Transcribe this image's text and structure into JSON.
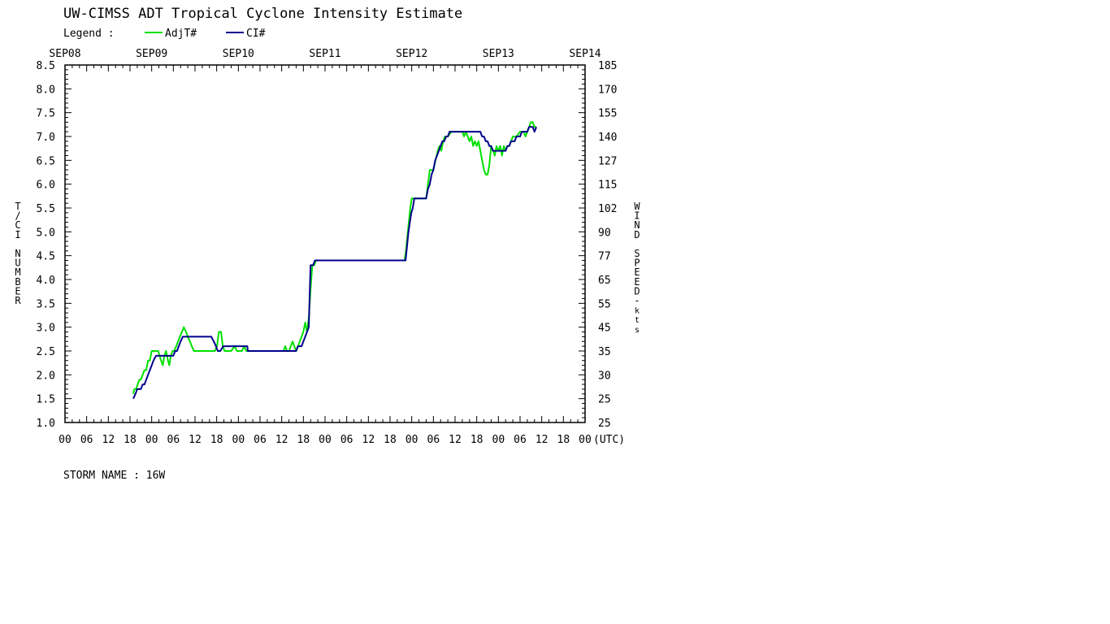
{
  "chart_data": {
    "type": "line",
    "title": "UW-CIMSS ADT Tropical Cyclone Intensity Estimate",
    "legend_label": "Legend :",
    "legend_placement": "top-left",
    "grid": false,
    "ylabel": "T/CI NUMBER",
    "y2label": "WIND SPEED-kts",
    "xlabel_unit": "(UTC)",
    "footer_label": "STORM NAME : 16W",
    "ylim": [
      1.0,
      8.5
    ],
    "yticks": [
      "1.0",
      "1.5",
      "2.0",
      "2.5",
      "3.0",
      "3.5",
      "4.0",
      "4.5",
      "5.0",
      "5.5",
      "6.0",
      "6.5",
      "7.0",
      "7.5",
      "8.0",
      "8.5"
    ],
    "y2ticks": [
      "25",
      "25",
      "30",
      "35",
      "45",
      "55",
      "65",
      "77",
      "90",
      "102",
      "115",
      "127",
      "140",
      "155",
      "170",
      "185"
    ],
    "x_unit": "hours since SEP08 00UTC",
    "xlim": [
      0,
      144
    ],
    "date_labels": [
      "SEP08",
      "SEP09",
      "SEP10",
      "SEP11",
      "SEP12",
      "SEP13",
      "SEP14"
    ],
    "hour_labels": [
      "00",
      "06",
      "12",
      "18",
      "00",
      "06",
      "12",
      "18",
      "00",
      "06",
      "12",
      "18",
      "00",
      "06",
      "12",
      "18",
      "00",
      "06",
      "12",
      "18",
      "00",
      "06",
      "12",
      "18",
      "00"
    ],
    "series": [
      {
        "name": "AdjT#",
        "color": "#00e000",
        "points": [
          [
            18.9,
            1.6
          ],
          [
            19.2,
            1.7
          ],
          [
            19.7,
            1.7
          ],
          [
            20.1,
            1.8
          ],
          [
            20.6,
            1.9
          ],
          [
            21.0,
            1.9
          ],
          [
            21.5,
            2.0
          ],
          [
            22.0,
            2.1
          ],
          [
            22.5,
            2.1
          ],
          [
            23.0,
            2.3
          ],
          [
            23.5,
            2.3
          ],
          [
            24.0,
            2.5
          ],
          [
            24.5,
            2.5
          ],
          [
            25.2,
            2.5
          ],
          [
            25.8,
            2.5
          ],
          [
            26.2,
            2.4
          ],
          [
            26.6,
            2.3
          ],
          [
            27.1,
            2.2
          ],
          [
            27.5,
            2.4
          ],
          [
            28.0,
            2.5
          ],
          [
            28.5,
            2.3
          ],
          [
            28.9,
            2.2
          ],
          [
            29.3,
            2.4
          ],
          [
            29.8,
            2.5
          ],
          [
            30.2,
            2.5
          ],
          [
            30.8,
            2.6
          ],
          [
            31.3,
            2.7
          ],
          [
            31.8,
            2.8
          ],
          [
            32.4,
            2.9
          ],
          [
            32.9,
            3.0
          ],
          [
            33.5,
            2.9
          ],
          [
            34.0,
            2.8
          ],
          [
            34.6,
            2.7
          ],
          [
            35.1,
            2.6
          ],
          [
            35.7,
            2.5
          ],
          [
            36.5,
            2.5
          ],
          [
            38.0,
            2.5
          ],
          [
            40.0,
            2.5
          ],
          [
            41.5,
            2.5
          ],
          [
            42.1,
            2.6
          ],
          [
            42.6,
            2.9
          ],
          [
            43.2,
            2.9
          ],
          [
            43.7,
            2.6
          ],
          [
            44.2,
            2.5
          ],
          [
            45.0,
            2.5
          ],
          [
            46.0,
            2.5
          ],
          [
            47.0,
            2.6
          ],
          [
            47.6,
            2.5
          ],
          [
            48.4,
            2.5
          ],
          [
            49.0,
            2.5
          ],
          [
            49.6,
            2.6
          ],
          [
            50.2,
            2.5
          ],
          [
            51.0,
            2.5
          ],
          [
            53.0,
            2.5
          ],
          [
            55.0,
            2.5
          ],
          [
            58.0,
            2.5
          ],
          [
            60.5,
            2.5
          ],
          [
            61.0,
            2.6
          ],
          [
            61.5,
            2.5
          ],
          [
            62.0,
            2.5
          ],
          [
            62.5,
            2.6
          ],
          [
            63.0,
            2.7
          ],
          [
            63.5,
            2.6
          ],
          [
            64.0,
            2.5
          ],
          [
            64.5,
            2.6
          ],
          [
            65.0,
            2.7
          ],
          [
            65.5,
            2.8
          ],
          [
            66.0,
            2.9
          ],
          [
            66.5,
            3.1
          ],
          [
            67.0,
            2.9
          ],
          [
            67.5,
            3.2
          ],
          [
            68.0,
            3.8
          ],
          [
            68.5,
            4.3
          ],
          [
            69.0,
            4.3
          ],
          [
            69.5,
            4.4
          ],
          [
            72.0,
            4.4
          ],
          [
            76.0,
            4.4
          ],
          [
            80.0,
            4.4
          ],
          [
            84.0,
            4.4
          ],
          [
            88.0,
            4.4
          ],
          [
            94.0,
            4.4
          ],
          [
            94.4,
            4.6
          ],
          [
            94.8,
            4.9
          ],
          [
            95.2,
            5.2
          ],
          [
            95.6,
            5.5
          ],
          [
            96.0,
            5.7
          ],
          [
            97.0,
            5.7
          ],
          [
            98.0,
            5.7
          ],
          [
            99.0,
            5.7
          ],
          [
            100.0,
            5.7
          ],
          [
            100.5,
            6.0
          ],
          [
            101.0,
            6.3
          ],
          [
            101.5,
            6.3
          ],
          [
            102.0,
            6.3
          ],
          [
            102.6,
            6.5
          ],
          [
            103.2,
            6.7
          ],
          [
            103.7,
            6.8
          ],
          [
            104.2,
            6.7
          ],
          [
            104.7,
            6.9
          ],
          [
            105.2,
            7.0
          ],
          [
            106.0,
            7.0
          ],
          [
            107.0,
            7.1
          ],
          [
            108.0,
            7.1
          ],
          [
            109.0,
            7.1
          ],
          [
            110.0,
            7.1
          ],
          [
            110.5,
            7.0
          ],
          [
            111.0,
            7.1
          ],
          [
            111.5,
            7.0
          ],
          [
            112.0,
            6.9
          ],
          [
            112.5,
            7.0
          ],
          [
            113.0,
            6.8
          ],
          [
            113.5,
            6.9
          ],
          [
            114.0,
            6.8
          ],
          [
            114.5,
            6.9
          ],
          [
            115.0,
            6.7
          ],
          [
            115.5,
            6.5
          ],
          [
            116.0,
            6.3
          ],
          [
            116.5,
            6.2
          ],
          [
            117.0,
            6.2
          ],
          [
            117.5,
            6.4
          ],
          [
            118.0,
            6.8
          ],
          [
            118.5,
            6.7
          ],
          [
            119.0,
            6.6
          ],
          [
            119.5,
            6.8
          ],
          [
            120.0,
            6.7
          ],
          [
            120.5,
            6.8
          ],
          [
            121.0,
            6.6
          ],
          [
            121.5,
            6.8
          ],
          [
            122.0,
            6.7
          ],
          [
            122.5,
            6.8
          ],
          [
            123.0,
            6.8
          ],
          [
            123.5,
            6.9
          ],
          [
            124.0,
            7.0
          ],
          [
            125.0,
            7.0
          ],
          [
            126.0,
            7.1
          ],
          [
            127.0,
            7.1
          ],
          [
            127.5,
            7.0
          ],
          [
            128.0,
            7.1
          ],
          [
            128.5,
            7.2
          ],
          [
            129.0,
            7.3
          ],
          [
            129.5,
            7.3
          ],
          [
            130.0,
            7.2
          ],
          [
            130.5,
            7.2
          ]
        ]
      },
      {
        "name": "CI#",
        "color": "#00008b",
        "points": [
          [
            18.9,
            1.5
          ],
          [
            19.5,
            1.6
          ],
          [
            20.0,
            1.7
          ],
          [
            21.0,
            1.7
          ],
          [
            21.5,
            1.8
          ],
          [
            22.0,
            1.8
          ],
          [
            22.5,
            1.9
          ],
          [
            23.0,
            2.0
          ],
          [
            23.5,
            2.1
          ],
          [
            24.0,
            2.2
          ],
          [
            24.5,
            2.3
          ],
          [
            25.2,
            2.4
          ],
          [
            26.0,
            2.4
          ],
          [
            27.0,
            2.4
          ],
          [
            28.0,
            2.4
          ],
          [
            29.0,
            2.4
          ],
          [
            30.0,
            2.4
          ],
          [
            30.5,
            2.5
          ],
          [
            31.0,
            2.5
          ],
          [
            31.5,
            2.6
          ],
          [
            32.0,
            2.7
          ],
          [
            32.6,
            2.8
          ],
          [
            33.5,
            2.8
          ],
          [
            35.0,
            2.8
          ],
          [
            37.0,
            2.8
          ],
          [
            39.0,
            2.8
          ],
          [
            40.5,
            2.8
          ],
          [
            41.2,
            2.7
          ],
          [
            41.8,
            2.6
          ],
          [
            42.3,
            2.5
          ],
          [
            43.0,
            2.5
          ],
          [
            43.8,
            2.6
          ],
          [
            45.0,
            2.6
          ],
          [
            47.0,
            2.6
          ],
          [
            49.0,
            2.6
          ],
          [
            50.5,
            2.6
          ],
          [
            50.6,
            2.5
          ],
          [
            53.0,
            2.5
          ],
          [
            56.0,
            2.5
          ],
          [
            59.0,
            2.5
          ],
          [
            62.0,
            2.5
          ],
          [
            64.0,
            2.5
          ],
          [
            64.5,
            2.6
          ],
          [
            65.5,
            2.6
          ],
          [
            66.0,
            2.7
          ],
          [
            66.5,
            2.8
          ],
          [
            67.0,
            2.9
          ],
          [
            67.5,
            3.0
          ],
          [
            67.8,
            3.8
          ],
          [
            68.0,
            4.3
          ],
          [
            68.7,
            4.3
          ],
          [
            69.2,
            4.4
          ],
          [
            72.0,
            4.4
          ],
          [
            76.0,
            4.4
          ],
          [
            80.0,
            4.4
          ],
          [
            84.0,
            4.4
          ],
          [
            88.0,
            4.4
          ],
          [
            93.5,
            4.4
          ],
          [
            94.3,
            4.4
          ],
          [
            94.7,
            4.7
          ],
          [
            95.1,
            5.0
          ],
          [
            95.5,
            5.2
          ],
          [
            95.9,
            5.4
          ],
          [
            96.3,
            5.5
          ],
          [
            96.7,
            5.7
          ],
          [
            97.5,
            5.7
          ],
          [
            98.5,
            5.7
          ],
          [
            99.5,
            5.7
          ],
          [
            100.0,
            5.7
          ],
          [
            100.5,
            5.9
          ],
          [
            101.0,
            6.0
          ],
          [
            101.5,
            6.2
          ],
          [
            102.0,
            6.3
          ],
          [
            102.5,
            6.5
          ],
          [
            103.0,
            6.6
          ],
          [
            103.5,
            6.7
          ],
          [
            104.0,
            6.8
          ],
          [
            104.5,
            6.9
          ],
          [
            105.0,
            6.9
          ],
          [
            105.5,
            7.0
          ],
          [
            106.0,
            7.0
          ],
          [
            106.5,
            7.1
          ],
          [
            108.0,
            7.1
          ],
          [
            110.0,
            7.1
          ],
          [
            112.0,
            7.1
          ],
          [
            114.0,
            7.1
          ],
          [
            115.0,
            7.1
          ],
          [
            115.5,
            7.0
          ],
          [
            116.0,
            7.0
          ],
          [
            116.5,
            6.9
          ],
          [
            117.0,
            6.9
          ],
          [
            117.5,
            6.8
          ],
          [
            118.0,
            6.8
          ],
          [
            118.5,
            6.7
          ],
          [
            119.0,
            6.7
          ],
          [
            120.0,
            6.7
          ],
          [
            121.0,
            6.7
          ],
          [
            122.0,
            6.7
          ],
          [
            122.5,
            6.8
          ],
          [
            123.0,
            6.8
          ],
          [
            123.5,
            6.9
          ],
          [
            124.0,
            6.9
          ],
          [
            124.5,
            6.9
          ],
          [
            125.0,
            7.0
          ],
          [
            125.5,
            7.0
          ],
          [
            126.0,
            7.0
          ],
          [
            126.5,
            7.1
          ],
          [
            127.0,
            7.1
          ],
          [
            128.0,
            7.1
          ],
          [
            128.5,
            7.2
          ],
          [
            129.0,
            7.2
          ],
          [
            129.5,
            7.2
          ],
          [
            130.0,
            7.1
          ],
          [
            130.5,
            7.2
          ]
        ]
      }
    ]
  }
}
